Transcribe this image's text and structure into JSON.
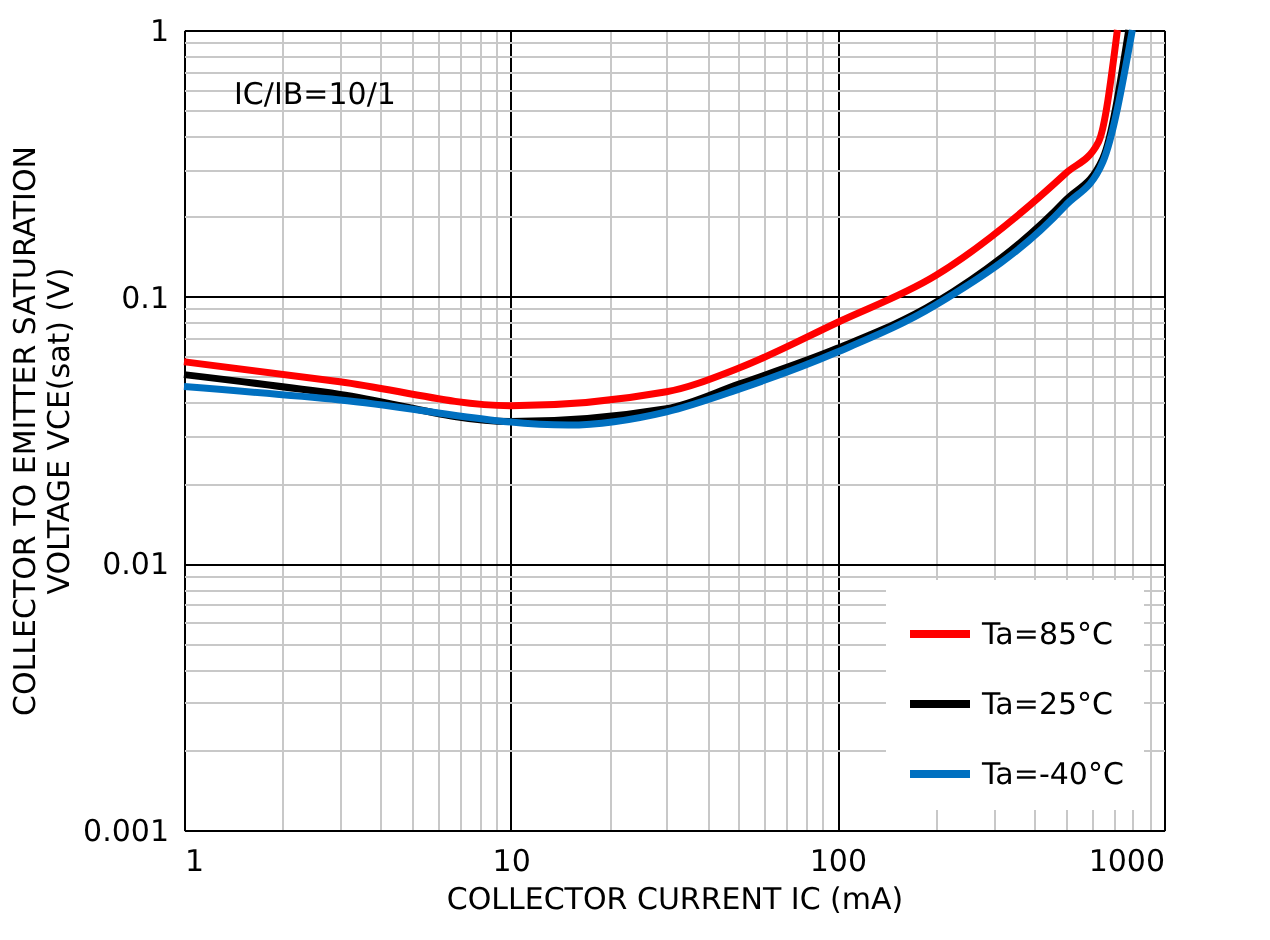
{
  "chart_data": {
    "type": "line",
    "xlabel": "COLLECTOR CURRENT  IC (mA)",
    "ylabel": "COLLECTOR TO EMITTER SATURATION\nVOLTAGE   VCE(sat) (V)",
    "annotations": [
      "IC/IB=10/1"
    ],
    "log": "xy",
    "grid": true,
    "legend": "bottom right",
    "line_style": "solid",
    "marker": "none",
    "xlim": [
      1,
      1000
    ],
    "ylim": [
      0.001,
      1
    ],
    "xticks": [
      1,
      {
        "value": 2,
        "label": null
      },
      {
        "value": 3,
        "label": null
      },
      {
        "value": 4,
        "label": null
      },
      {
        "value": 5,
        "label": null
      },
      {
        "value": 6,
        "label": null
      },
      {
        "value": 7,
        "label": null
      },
      {
        "value": 8,
        "label": null
      },
      {
        "value": 9,
        "label": null
      },
      10,
      {
        "value": 20,
        "label": null
      },
      {
        "value": 30,
        "label": null
      },
      {
        "value": 40,
        "label": null
      },
      {
        "value": 50,
        "label": null
      },
      {
        "value": 60,
        "label": null
      },
      {
        "value": 70,
        "label": null
      },
      {
        "value": 80,
        "label": null
      },
      {
        "value": 90,
        "label": null
      },
      100,
      {
        "value": 200,
        "label": null
      },
      {
        "value": 300,
        "label": null
      },
      {
        "value": 400,
        "label": null
      },
      {
        "value": 500,
        "label": null
      },
      {
        "value": 600,
        "label": null
      },
      {
        "value": 700,
        "label": null
      },
      {
        "value": 800,
        "label": null
      },
      {
        "value": 900,
        "label": null
      },
      1000
    ],
    "yticks": [
      0.001,
      {
        "value": 0.002,
        "label": null
      },
      {
        "value": 0.003,
        "label": null
      },
      {
        "value": 0.004,
        "label": null
      },
      {
        "value": 0.005,
        "label": null
      },
      {
        "value": 0.006,
        "label": null
      },
      {
        "value": 0.007,
        "label": null
      },
      {
        "value": 0.008,
        "label": null
      },
      {
        "value": 0.009,
        "label": null
      },
      0.01,
      {
        "value": 0.02,
        "label": null
      },
      {
        "value": 0.03,
        "label": null
      },
      {
        "value": 0.04,
        "label": null
      },
      {
        "value": 0.05,
        "label": null
      },
      {
        "value": 0.06,
        "label": null
      },
      {
        "value": 0.07,
        "label": null
      },
      {
        "value": 0.08,
        "label": null
      },
      {
        "value": 0.09,
        "label": null
      },
      0.1,
      {
        "value": 0.2,
        "label": null
      },
      {
        "value": 0.3,
        "label": null
      },
      {
        "value": 0.4,
        "label": null
      },
      {
        "value": 0.5,
        "label": null
      },
      {
        "value": 0.6,
        "label": null
      },
      {
        "value": 0.7,
        "label": null
      },
      {
        "value": 0.8,
        "label": null
      },
      {
        "value": 0.9,
        "label": null
      },
      1
    ],
    "series": [
      {
        "name": "Ta=85°C",
        "color": "#ff0000",
        "x": [
          1,
          3,
          10,
          30,
          50,
          100,
          200,
          500,
          630,
          720
        ],
        "values": [
          0.057,
          0.048,
          0.039,
          0.044,
          0.054,
          0.08,
          0.12,
          0.29,
          0.38,
          1
        ]
      },
      {
        "name": "Ta=25°C",
        "color": "#000000",
        "x": [
          1,
          3,
          10,
          30,
          50,
          100,
          200,
          500,
          650,
          780
        ],
        "values": [
          0.051,
          0.043,
          0.034,
          0.038,
          0.047,
          0.064,
          0.095,
          0.23,
          0.33,
          1
        ]
      },
      {
        "name": "Ta=-40°C",
        "color": "#0070c0",
        "x": [
          1,
          3,
          15,
          30,
          50,
          100,
          200,
          500,
          650,
          800
        ],
        "values": [
          0.046,
          0.041,
          0.033,
          0.037,
          0.045,
          0.062,
          0.093,
          0.22,
          0.32,
          1
        ]
      }
    ]
  }
}
